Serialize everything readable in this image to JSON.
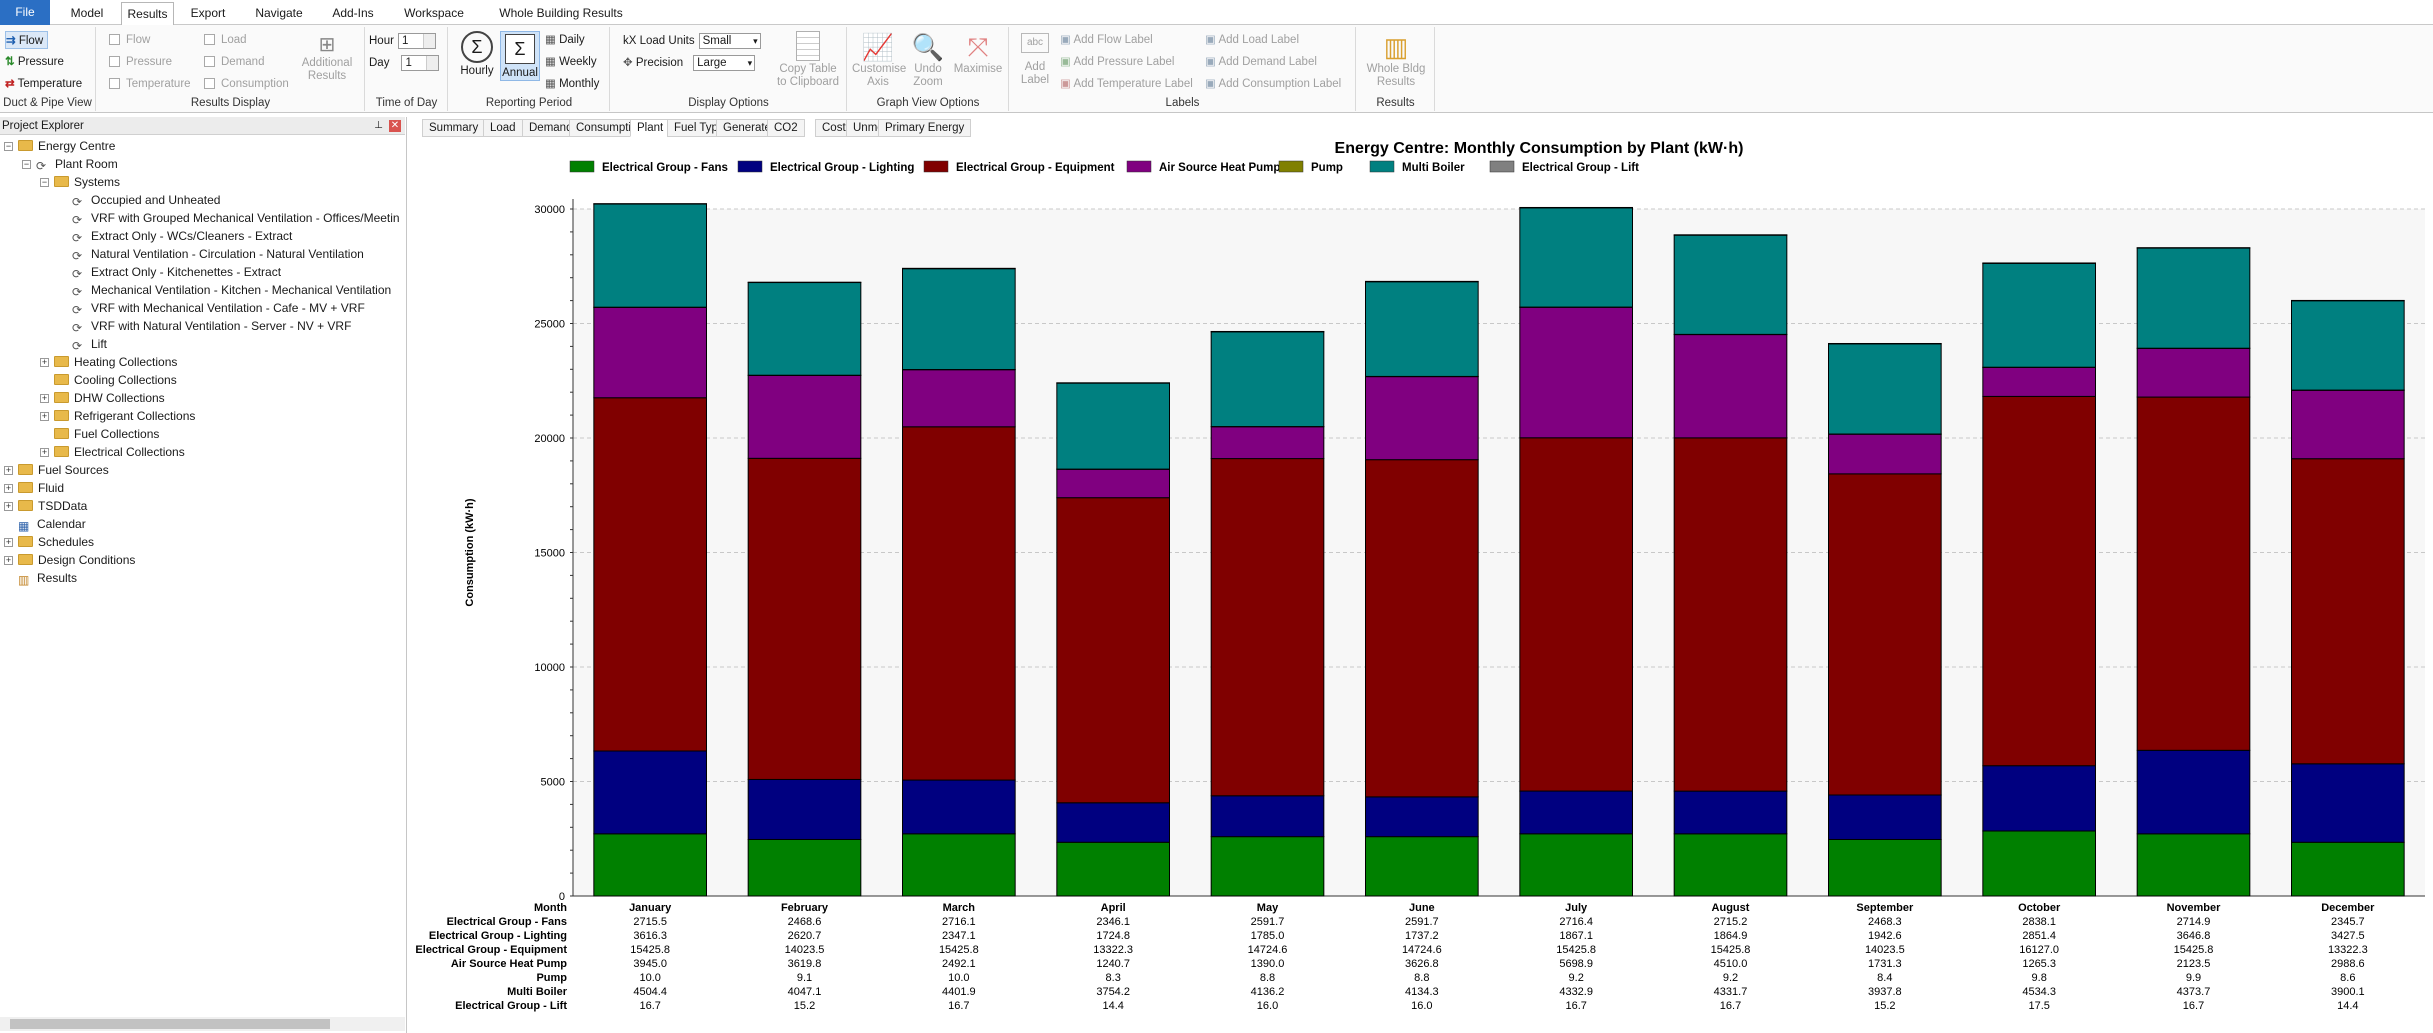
{
  "menu": [
    {
      "label": "File",
      "kind": "file"
    },
    {
      "label": "Model"
    },
    {
      "label": "Results",
      "kind": "active"
    },
    {
      "label": "Export"
    },
    {
      "label": "Navigate"
    },
    {
      "label": "Add-Ins"
    },
    {
      "label": "Workspace"
    },
    {
      "label": "Whole Building Results"
    }
  ],
  "ribbon": {
    "duct_pipe": {
      "items": [
        "Flow",
        "Pressure",
        "Temperature"
      ],
      "label": "Duct & Pipe View"
    },
    "results_display": {
      "col1": [
        "Flow",
        "Pressure",
        "Temperature"
      ],
      "col2": [
        "Load",
        "Demand",
        "Consumption"
      ],
      "additional": "Additional Results",
      "label": "Results Display"
    },
    "time_of_day": {
      "hour_label": "Hour",
      "hour_value": "1",
      "day_label": "Day",
      "day_value": "1",
      "label": "Time of Day"
    },
    "reporting": {
      "hourly": "Hourly",
      "annual": "Annual",
      "daily": "Daily",
      "weekly": "Weekly",
      "monthly": "Monthly",
      "label": "Reporting Period"
    },
    "display": {
      "load_units_label": "kX  Load Units",
      "load_units_value": "Small",
      "precision_label": "Precision",
      "precision_value": "Large",
      "copy": "Copy Table to Clipboard",
      "label": "Display Options"
    },
    "graph": {
      "customise": "Customise Axis",
      "undo": "Undo Zoom",
      "maximise": "Maximise",
      "label": "Graph View Options"
    },
    "labels": {
      "add_label": "Add Label",
      "flow": "Add Flow Label",
      "pressure": "Add Pressure Label",
      "temperature": "Add Temperature Label",
      "load": "Add Load Label",
      "demand": "Add Demand Label",
      "consumption": "Add Consumption Label",
      "label": "Labels"
    },
    "results": {
      "whole": "Whole Bldg Results",
      "label": "Results"
    }
  },
  "explorer": {
    "title": "Project Explorer",
    "tree": [
      {
        "label": "Energy Centre",
        "level": 0,
        "icon": "folder",
        "exp": "-"
      },
      {
        "label": "Plant Room",
        "level": 1,
        "icon": "system",
        "exp": "-"
      },
      {
        "label": "Systems",
        "level": 2,
        "icon": "folder",
        "exp": "-"
      },
      {
        "label": "Occupied and Unheated",
        "level": 3,
        "icon": "system"
      },
      {
        "label": "VRF with Grouped Mechanical Ventilation - Offices/Meetin",
        "level": 3,
        "icon": "system"
      },
      {
        "label": "Extract Only - WCs/Cleaners - Extract",
        "level": 3,
        "icon": "system"
      },
      {
        "label": "Natural Ventilation - Circulation - Natural Ventilation",
        "level": 3,
        "icon": "system"
      },
      {
        "label": "Extract Only - Kitchenettes - Extract",
        "level": 3,
        "icon": "system"
      },
      {
        "label": "Mechanical Ventilation - Kitchen - Mechanical Ventilation",
        "level": 3,
        "icon": "system"
      },
      {
        "label": "VRF with Mechanical Ventilation - Cafe - MV + VRF",
        "level": 3,
        "icon": "system"
      },
      {
        "label": "VRF with Natural Ventilation - Server - NV + VRF",
        "level": 3,
        "icon": "system"
      },
      {
        "label": "Lift",
        "level": 3,
        "icon": "system"
      },
      {
        "label": "Heating Collections",
        "level": 2,
        "icon": "folder",
        "exp": "+"
      },
      {
        "label": "Cooling Collections",
        "level": 2,
        "icon": "folder"
      },
      {
        "label": "DHW Collections",
        "level": 2,
        "icon": "folder",
        "exp": "+"
      },
      {
        "label": "Refrigerant Collections",
        "level": 2,
        "icon": "folder",
        "exp": "+"
      },
      {
        "label": "Fuel Collections",
        "level": 2,
        "icon": "folder"
      },
      {
        "label": "Electrical Collections",
        "level": 2,
        "icon": "folder",
        "exp": "+"
      },
      {
        "label": "Fuel Sources",
        "level": 0,
        "icon": "folder",
        "exp": "+"
      },
      {
        "label": "Fluid",
        "level": 0,
        "icon": "folder",
        "exp": "+"
      },
      {
        "label": "TSDData",
        "level": 0,
        "icon": "folder",
        "exp": "+"
      },
      {
        "label": "Calendar",
        "level": 0,
        "icon": "calendar"
      },
      {
        "label": "Schedules",
        "level": 0,
        "icon": "folder",
        "exp": "+"
      },
      {
        "label": "Design Conditions",
        "level": 0,
        "icon": "folder",
        "exp": "+"
      },
      {
        "label": "Results",
        "level": 0,
        "icon": "results"
      }
    ]
  },
  "result_tabs": [
    "Summary",
    "Load",
    "Demand",
    "Consumption",
    "Plant",
    "Fuel Type",
    "Generated",
    "CO2",
    "Cost",
    "Unmet Hours",
    "Primary Energy"
  ],
  "active_result_tab": "Plant",
  "chart_data": {
    "type": "bar",
    "stacked": true,
    "title": "Energy Centre: Monthly Consumption by Plant (kW·h)",
    "ylabel": "Consumption (kW·h)",
    "xlabel": "Month",
    "ylim": [
      0,
      30000
    ],
    "yticks": [
      0,
      5000,
      10000,
      15000,
      20000,
      25000,
      30000
    ],
    "grid": true,
    "legend": "top",
    "categories": [
      "January",
      "February",
      "March",
      "April",
      "May",
      "June",
      "July",
      "August",
      "September",
      "October",
      "November",
      "December"
    ],
    "series": [
      {
        "name": "Electrical Group - Fans",
        "color": "#008000",
        "values": [
          "2715.5",
          "2468.6",
          "2716.1",
          "2346.1",
          "2591.7",
          "2591.7",
          "2716.4",
          "2715.2",
          "2468.3",
          "2838.1",
          "2714.9",
          "2345.7"
        ]
      },
      {
        "name": "Electrical Group - Lighting",
        "color": "#000080",
        "values": [
          "3616.3",
          "2620.7",
          "2347.1",
          "1724.8",
          "1785.0",
          "1737.2",
          "1867.1",
          "1864.9",
          "1942.6",
          "2851.4",
          "3646.8",
          "3427.5"
        ]
      },
      {
        "name": "Electrical Group - Equipment",
        "color": "#800000",
        "values": [
          "15425.8",
          "14023.5",
          "15425.8",
          "13322.3",
          "14724.6",
          "14724.6",
          "15425.8",
          "15425.8",
          "14023.5",
          "16127.0",
          "15425.8",
          "13322.3"
        ]
      },
      {
        "name": "Air Source Heat Pump",
        "color": "#800080",
        "values": [
          "3945.0",
          "3619.8",
          "2492.1",
          "1240.7",
          "1390.0",
          "3626.8",
          "5698.9",
          "4510.0",
          "1731.3",
          "1265.3",
          "2123.5",
          "2988.6"
        ]
      },
      {
        "name": "Pump",
        "color": "#808000",
        "values": [
          "10.0",
          "9.1",
          "10.0",
          "8.3",
          "8.8",
          "8.8",
          "9.2",
          "9.2",
          "8.4",
          "9.8",
          "9.9",
          "8.6"
        ]
      },
      {
        "name": "Multi Boiler",
        "color": "#008080",
        "values": [
          "4504.4",
          "4047.1",
          "4401.9",
          "3754.2",
          "4136.2",
          "4134.3",
          "4332.9",
          "4331.7",
          "3937.8",
          "4534.3",
          "4373.7",
          "3900.1"
        ]
      },
      {
        "name": "Electrical Group - Lift",
        "color": "#808080",
        "values": [
          "16.7",
          "15.2",
          "16.7",
          "14.4",
          "16.0",
          "16.0",
          "16.7",
          "16.7",
          "15.2",
          "17.5",
          "16.7",
          "14.4"
        ]
      }
    ]
  }
}
